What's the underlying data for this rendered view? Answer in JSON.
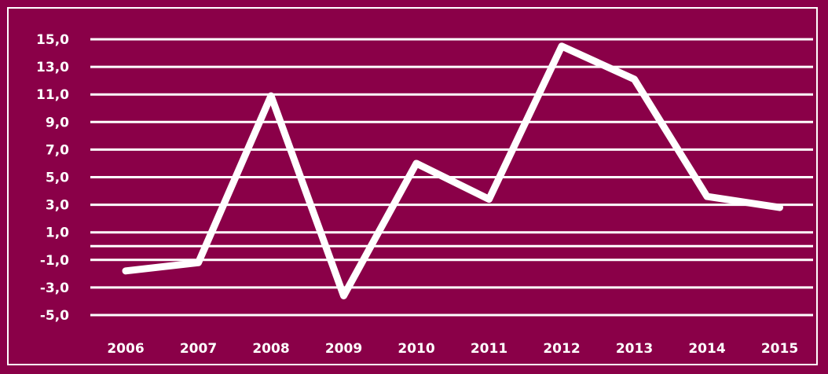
{
  "chart_data": {
    "type": "line",
    "title": "",
    "xlabel": "",
    "ylabel": "",
    "categories": [
      "2006",
      "2007",
      "2008",
      "2009",
      "2010",
      "2011",
      "2012",
      "2013",
      "2014",
      "2015"
    ],
    "series": [
      {
        "values": [
          -1.8,
          -1.2,
          10.9,
          -3.6,
          6.0,
          3.4,
          14.5,
          12.1,
          3.6,
          2.8
        ]
      }
    ],
    "y_ticks": [
      "15,0",
      "13,0",
      "11,0",
      "9,0",
      "7,0",
      "5,0",
      "3,0",
      "1,0",
      "-1,0",
      "-3,0",
      "-5,0"
    ],
    "y_tick_values": [
      15,
      13,
      11,
      9,
      7,
      5,
      3,
      1,
      -1,
      -3,
      -5
    ],
    "extra_gridlines": [
      0
    ],
    "ylim": [
      -5,
      15
    ],
    "grid": true,
    "legend": "none",
    "colors": {
      "background": "#8a0048",
      "line": "#ffffff",
      "text": "#ffffff"
    }
  }
}
